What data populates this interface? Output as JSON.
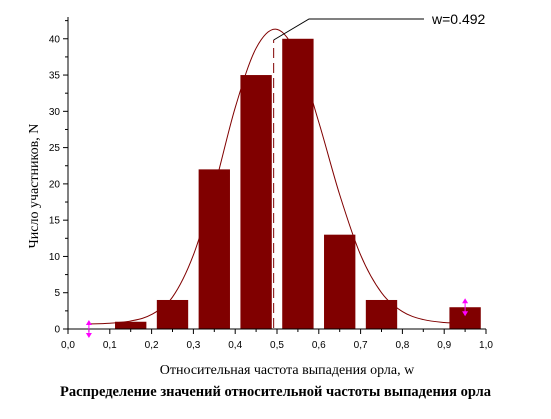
{
  "chart_data": {
    "type": "bar",
    "caption": "Распределение значений относительной частоты выпадения орла",
    "xlabel": "Относительная частота выпадения орла, w",
    "ylabel": "Число участников, N",
    "xlim": [
      0.0,
      1.0
    ],
    "ylim": [
      0,
      43
    ],
    "x_ticks": [
      "0,0",
      "0,1",
      "0,2",
      "0,3",
      "0,4",
      "0,5",
      "0,6",
      "0,7",
      "0,8",
      "0,9",
      "1,0"
    ],
    "y_ticks": [
      "0",
      "5",
      "10",
      "15",
      "20",
      "25",
      "30",
      "35",
      "40"
    ],
    "bar_width": 0.075,
    "bars": [
      {
        "x": 0.15,
        "value": 1
      },
      {
        "x": 0.25,
        "value": 4
      },
      {
        "x": 0.35,
        "value": 22
      },
      {
        "x": 0.45,
        "value": 35
      },
      {
        "x": 0.55,
        "value": 40
      },
      {
        "x": 0.65,
        "value": 13
      },
      {
        "x": 0.75,
        "value": 4
      },
      {
        "x": 0.95,
        "value": 3
      }
    ],
    "error_markers": [
      {
        "x": 0.05,
        "value": 0
      },
      {
        "x": 0.95,
        "value": 3
      }
    ],
    "fit_curve": {
      "x": [
        0.05,
        0.1,
        0.15,
        0.2,
        0.25,
        0.3,
        0.35,
        0.4,
        0.45,
        0.5,
        0.55,
        0.6,
        0.65,
        0.7,
        0.75,
        0.8,
        0.85,
        0.9,
        0.95
      ],
      "y": [
        0.7,
        0.8,
        1.1,
        2.0,
        4.4,
        10.2,
        19.5,
        30.5,
        38.7,
        41.3,
        37.5,
        28.5,
        18.5,
        10.2,
        5.0,
        2.4,
        1.3,
        0.9,
        0.8
      ]
    },
    "annotation": {
      "label": "w=0.492",
      "x": 0.492
    },
    "colors": {
      "bar": "#800000",
      "curve": "#800000",
      "marker": "#ff00ff"
    }
  }
}
